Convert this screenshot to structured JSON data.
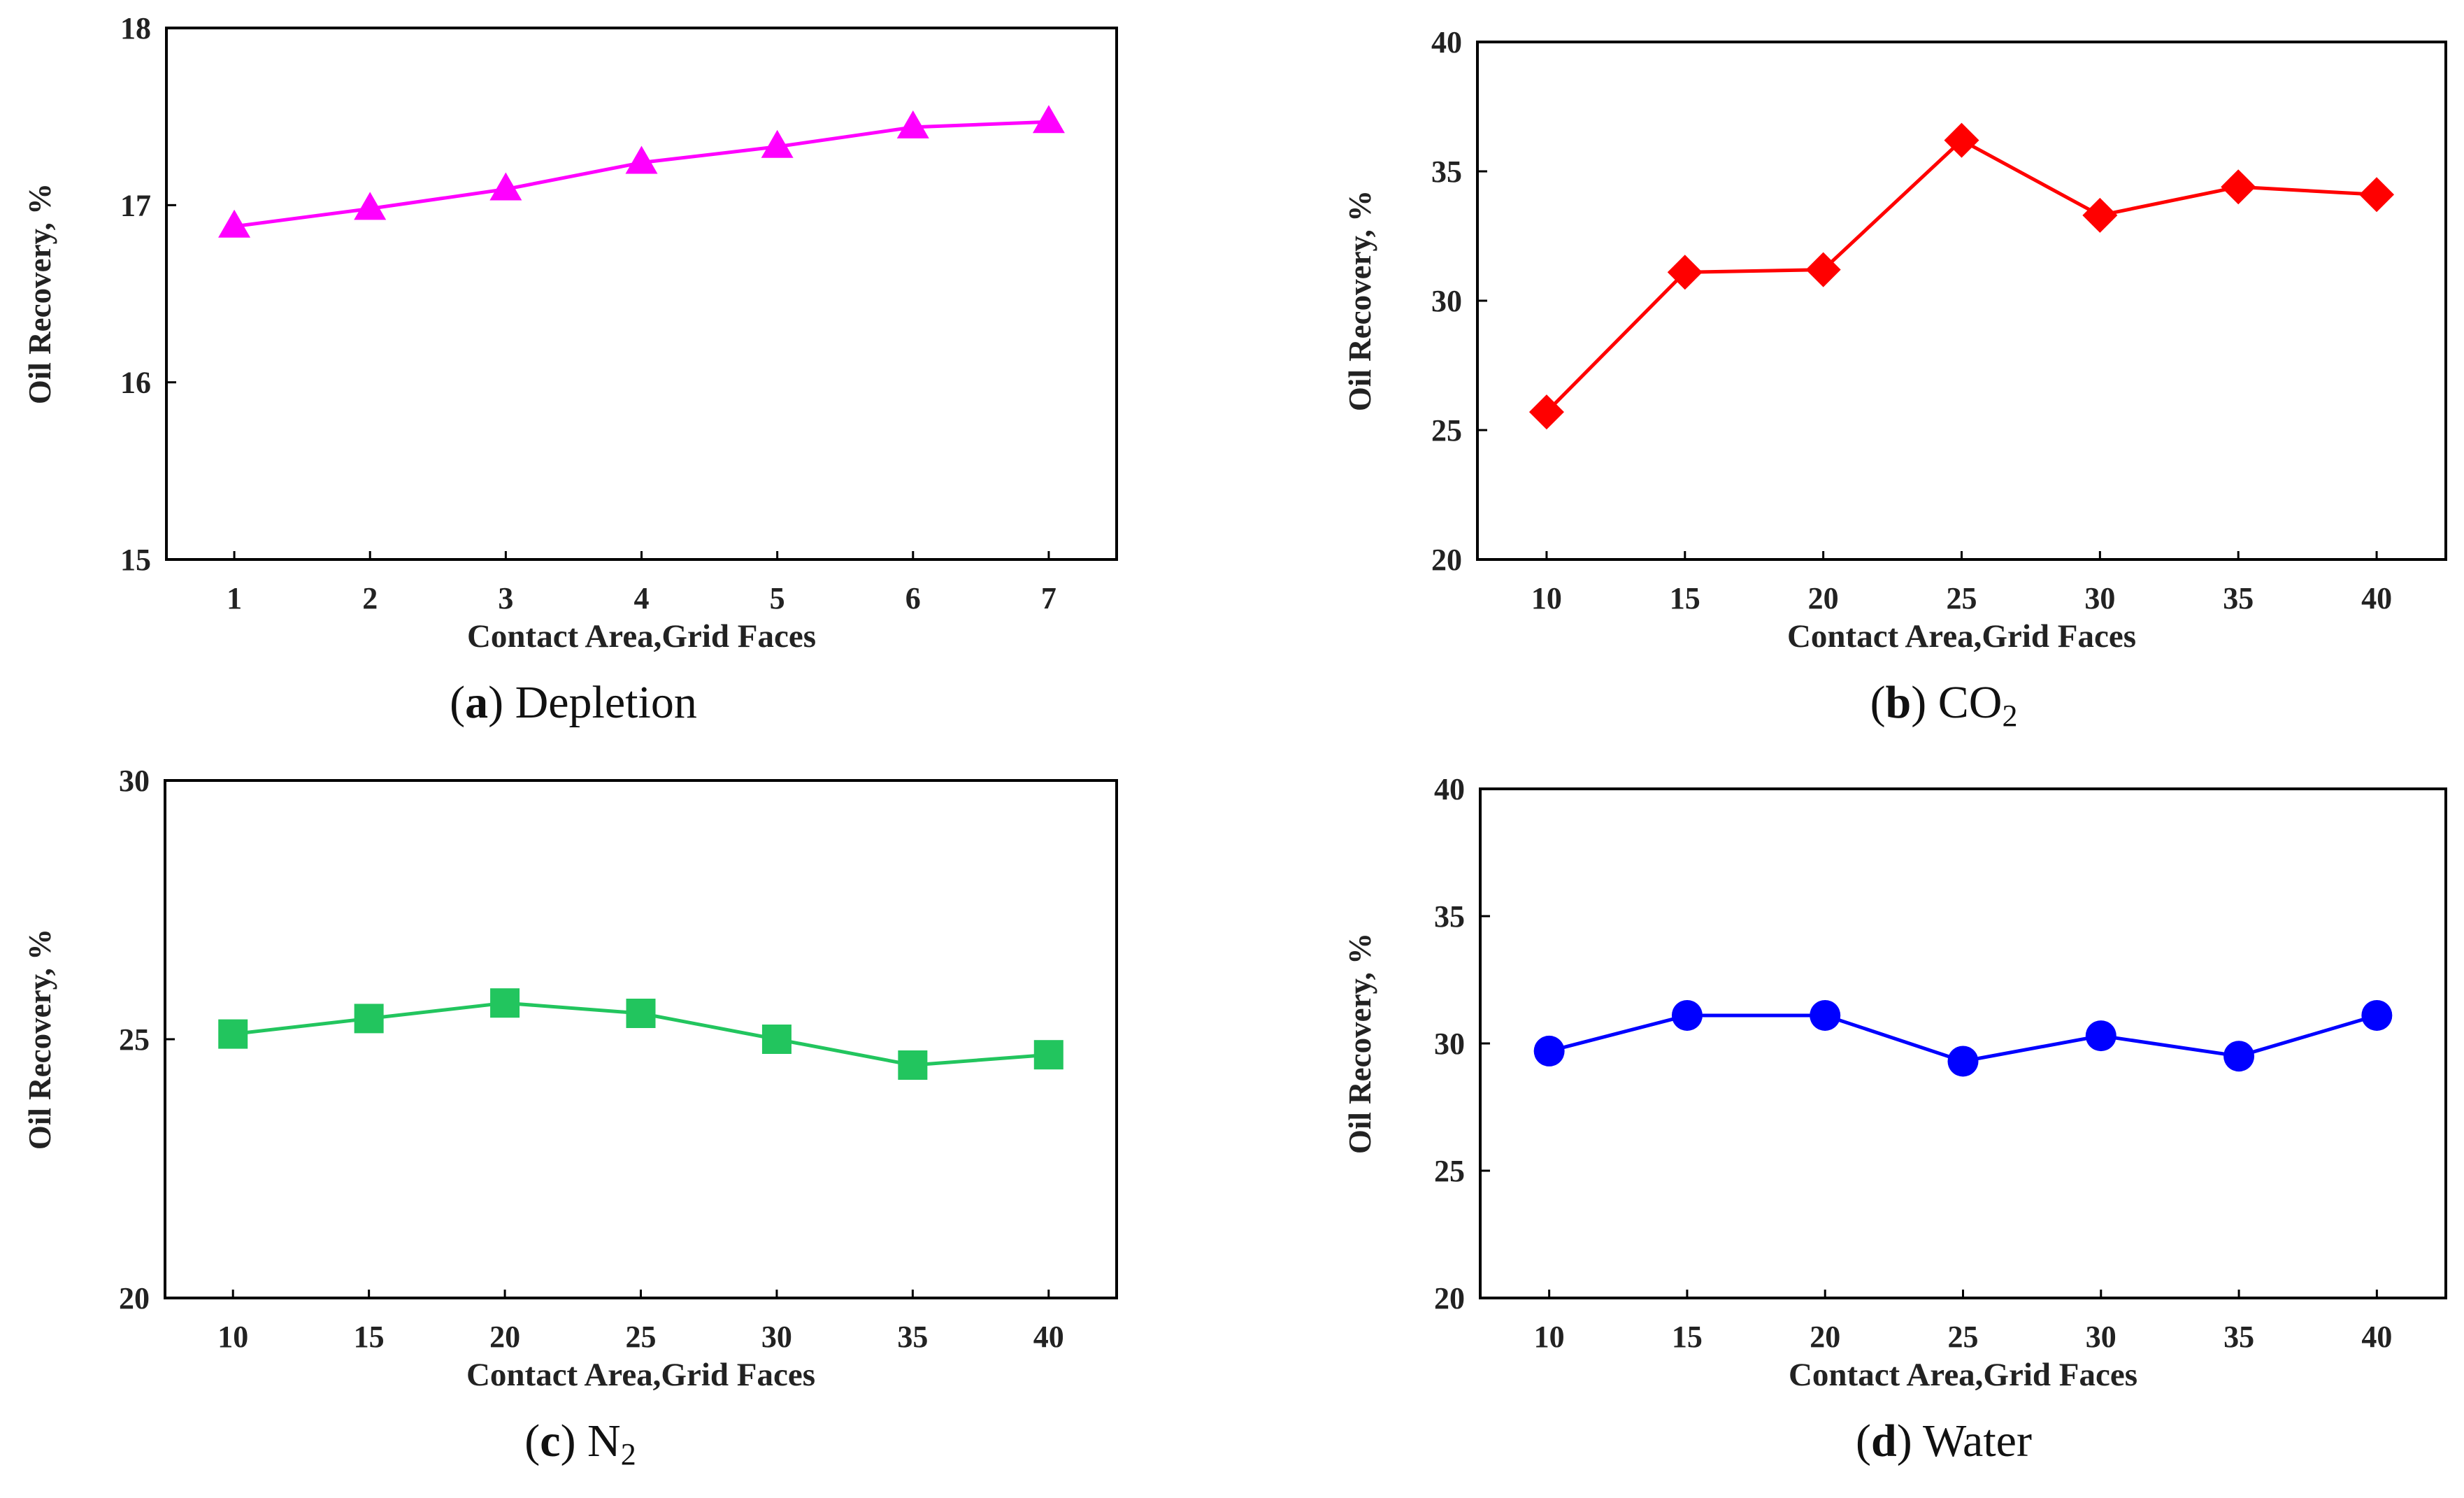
{
  "chart_data": [
    {
      "id": "a",
      "type": "line",
      "caption_letter": "a",
      "caption_text": "Depletion",
      "caption_sub": "",
      "xlabel": "Contact Area,Grid Faces",
      "ylabel": "Oil Recovery, %",
      "categories": [
        "1",
        "2",
        "3",
        "4",
        "5",
        "6",
        "7"
      ],
      "ylim": [
        15,
        18
      ],
      "yticks": [
        "15",
        "16",
        "17",
        "18"
      ],
      "grid": false,
      "marker": "triangle",
      "color": "#ff00ff",
      "series": [
        {
          "name": "Depletion",
          "values": [
            16.88,
            16.98,
            17.09,
            17.24,
            17.33,
            17.44,
            17.47
          ]
        }
      ]
    },
    {
      "id": "b",
      "type": "line",
      "caption_letter": "b",
      "caption_text": "CO",
      "caption_sub": "2",
      "xlabel": "Contact Area,Grid Faces",
      "ylabel": "Oil Recovery, %",
      "categories": [
        "10",
        "15",
        "20",
        "25",
        "30",
        "35",
        "40"
      ],
      "ylim": [
        20,
        40
      ],
      "yticks": [
        "20",
        "25",
        "30",
        "35",
        "40"
      ],
      "grid": false,
      "marker": "diamond",
      "color": "#ff0000",
      "series": [
        {
          "name": "CO2",
          "values": [
            25.7,
            31.1,
            31.2,
            36.2,
            33.3,
            34.4,
            34.1
          ]
        }
      ]
    },
    {
      "id": "c",
      "type": "line",
      "caption_letter": "c",
      "caption_text": "N",
      "caption_sub": "2",
      "xlabel": "Contact Area,Grid Faces",
      "ylabel": "Oil Recovery, %",
      "categories": [
        "10",
        "15",
        "20",
        "25",
        "30",
        "35",
        "40"
      ],
      "ylim": [
        20,
        30
      ],
      "yticks": [
        "20",
        "25",
        "30"
      ],
      "grid": false,
      "marker": "square",
      "color": "#22c55e",
      "series": [
        {
          "name": "N2",
          "values": [
            25.1,
            25.4,
            25.7,
            25.5,
            25.0,
            24.5,
            24.7
          ]
        }
      ]
    },
    {
      "id": "d",
      "type": "line",
      "caption_letter": "d",
      "caption_text": "Water",
      "caption_sub": "",
      "xlabel": "Contact Area,Grid Faces",
      "ylabel": "Oil Recovery, %",
      "categories": [
        "10",
        "15",
        "20",
        "25",
        "30",
        "35",
        "40"
      ],
      "ylim": [
        20,
        40
      ],
      "yticks": [
        "20",
        "25",
        "30",
        "35",
        "40"
      ],
      "grid": false,
      "marker": "circle",
      "color": "#0000ff",
      "series": [
        {
          "name": "Water",
          "values": [
            29.7,
            31.1,
            31.1,
            29.3,
            30.3,
            29.5,
            31.1
          ]
        }
      ]
    }
  ]
}
